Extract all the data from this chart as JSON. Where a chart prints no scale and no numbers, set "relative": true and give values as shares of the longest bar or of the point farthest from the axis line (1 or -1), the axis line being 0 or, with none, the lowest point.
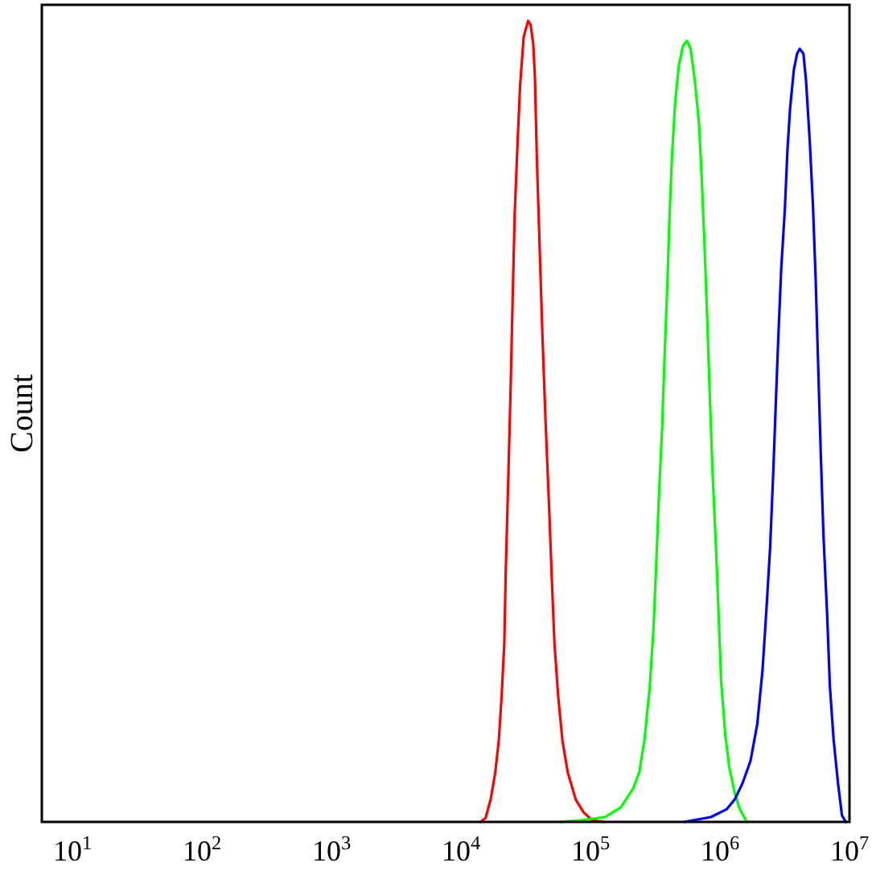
{
  "chart_data": {
    "type": "line",
    "ylabel": "Count",
    "relative": true,
    "log": "x",
    "xlim": [
      5.8,
      10000000
    ],
    "xticks": [
      {
        "value": 10,
        "label": "10$^{1}$"
      },
      {
        "value": 100,
        "label": "10$^{2}$"
      },
      {
        "value": 1000,
        "label": "10$^{3}$"
      },
      {
        "value": 10000,
        "label": "10$^{4}$"
      },
      {
        "value": 100000,
        "label": "10$^{5}$"
      },
      {
        "value": 1000000,
        "label": "10$^{6}$"
      },
      {
        "value": 10000000,
        "label": "10$^{7}$"
      }
    ],
    "series": [
      {
        "color": "#ff0000",
        "x": [
          14200,
          15500,
          17000,
          18400,
          19600,
          20600,
          21600,
          22200,
          23200,
          24200,
          25100,
          26000,
          27300,
          28600,
          30500,
          33000,
          34500,
          36100,
          37200,
          38600,
          40500,
          42500,
          44900,
          48000,
          50300,
          52700,
          56300,
          60700,
          66700,
          76900,
          88500,
          103000,
          129000
        ],
        "values": [
          0,
          0.005,
          0.029,
          0.062,
          0.102,
          0.157,
          0.223,
          0.317,
          0.43,
          0.544,
          0.658,
          0.759,
          0.845,
          0.919,
          0.98,
          1,
          0.995,
          0.972,
          0.932,
          0.825,
          0.718,
          0.61,
          0.504,
          0.39,
          0.303,
          0.223,
          0.157,
          0.102,
          0.062,
          0.028,
          0.012,
          0.002,
          0
        ]
      },
      {
        "color": "#00ff00",
        "x": [
          58500,
          84300,
          129000,
          171000,
          214000,
          238000,
          261000,
          287000,
          307000,
          321000,
          337000,
          357000,
          374000,
          392000,
          408000,
          426000,
          451000,
          482000,
          519000,
          556000,
          593000,
          640000,
          689000,
          722000,
          758000,
          793000,
          832000,
          873000,
          931000,
          977000,
          1020000,
          1100000,
          1180000,
          1300000,
          1420000,
          1610000
        ],
        "values": [
          0,
          0.002,
          0.006,
          0.018,
          0.042,
          0.062,
          0.102,
          0.169,
          0.243,
          0.317,
          0.404,
          0.49,
          0.584,
          0.67,
          0.758,
          0.831,
          0.899,
          0.945,
          0.969,
          0.975,
          0.965,
          0.925,
          0.871,
          0.805,
          0.724,
          0.638,
          0.538,
          0.443,
          0.343,
          0.257,
          0.176,
          0.108,
          0.068,
          0.036,
          0.016,
          0
        ]
      },
      {
        "color": "#0000ff",
        "x": [
          530000,
          849000,
          1130000,
          1300000,
          1490000,
          1720000,
          1940000,
          2130000,
          2280000,
          2440000,
          2580000,
          2700000,
          2830000,
          2970000,
          3170000,
          3320000,
          3480000,
          3720000,
          3940000,
          4130000,
          4410000,
          4620000,
          4930000,
          5220000,
          5480000,
          5730000,
          6010000,
          6300000,
          6730000,
          7060000,
          7530000,
          8130000,
          8750000,
          9370000
        ],
        "values": [
          0,
          0.006,
          0.016,
          0.028,
          0.048,
          0.076,
          0.122,
          0.189,
          0.263,
          0.343,
          0.437,
          0.524,
          0.61,
          0.69,
          0.765,
          0.839,
          0.891,
          0.939,
          0.959,
          0.965,
          0.959,
          0.925,
          0.851,
          0.771,
          0.678,
          0.57,
          0.457,
          0.357,
          0.257,
          0.169,
          0.104,
          0.05,
          0.008,
          0
        ]
      }
    ]
  }
}
